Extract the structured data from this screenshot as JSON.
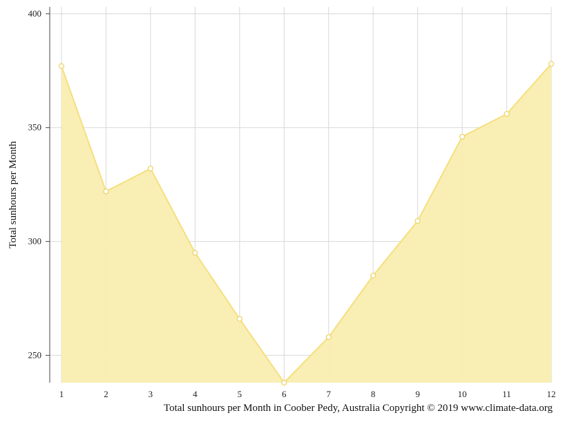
{
  "chart_data": {
    "type": "area",
    "x": [
      1,
      2,
      3,
      4,
      5,
      6,
      7,
      8,
      9,
      10,
      11,
      12
    ],
    "values": [
      377,
      322,
      332,
      295,
      266,
      238,
      258,
      285,
      309,
      346,
      356,
      378
    ],
    "ylabel": "Total sunhours per Month",
    "xlabel": "",
    "caption": "Total sunhours per Month in Coober Pedy, Australia Copyright © 2019 www.climate-data.org",
    "yticks": [
      250,
      300,
      350,
      400
    ],
    "ylim": [
      238,
      403
    ],
    "grid": true,
    "colors": {
      "fill": "#f9eeb0",
      "line": "#f5df7e",
      "marker": "#ecd35f",
      "grid": "#d8d8d8",
      "axis": "#444444"
    }
  }
}
